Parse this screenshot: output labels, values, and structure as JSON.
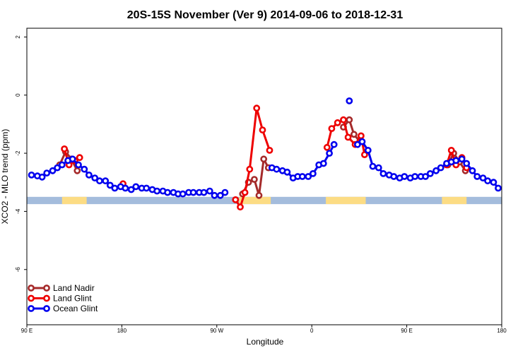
{
  "chart_data": {
    "type": "line",
    "title": "20S-15S November (Ver 9)   2014-09-06 to 2018-12-31",
    "xlabel": "Longitude",
    "ylabel": "XCO2 - MLO trend (ppm)",
    "xlim": [
      0,
      405
    ],
    "ylim": [
      -7.9,
      2.3
    ],
    "x_ticks": [
      {
        "value": 0,
        "label": "90 E"
      },
      {
        "value": 81,
        "label": "180"
      },
      {
        "value": 162,
        "label": "90 W"
      },
      {
        "value": 243,
        "label": "0"
      },
      {
        "value": 324,
        "label": "90 E"
      },
      {
        "value": 405,
        "label": "180"
      }
    ],
    "y_ticks": [
      {
        "value": 2,
        "label": "2"
      },
      {
        "value": 0,
        "label": "0"
      },
      {
        "value": -2,
        "label": "-2"
      },
      {
        "value": -4,
        "label": "-4"
      },
      {
        "value": -6,
        "label": "-6"
      }
    ],
    "legend": {
      "position": "bottom-left",
      "entries": [
        "Land Nadir",
        "Land Glint",
        "Ocean Glint"
      ]
    },
    "surface_band": {
      "y_top": -3.5,
      "y_bottom": -3.75,
      "ocean_color": "#a4bcdc",
      "land_color": "#fcdc84",
      "land_ranges": [
        [
          30,
          51
        ],
        [
          181,
          208
        ],
        [
          255,
          289
        ],
        [
          354,
          375
        ]
      ]
    },
    "series": [
      {
        "name": "Land Nadir",
        "color": "#a52a2a",
        "segments": [
          [
            [
              28,
              -2.4
            ],
            [
              33,
              -1.95
            ],
            [
              38,
              -2.2
            ],
            [
              43,
              -2.6
            ]
          ],
          [
            [
              184,
              -3.4
            ],
            [
              189,
              -3.0
            ],
            [
              194,
              -2.9
            ],
            [
              198,
              -3.45
            ],
            [
              202,
              -2.2
            ],
            [
              206,
              -2.5
            ]
          ],
          [
            [
              270,
              -1.1
            ],
            [
              275,
              -0.85
            ],
            [
              279,
              -1.35
            ],
            [
              284,
              -1.6
            ]
          ],
          [
            [
              359,
              -2.4
            ],
            [
              364,
              -2.0
            ],
            [
              369,
              -2.3
            ],
            [
              374,
              -2.6
            ]
          ]
        ]
      },
      {
        "name": "Land Glint",
        "color": "#ee0000",
        "segments": [
          [
            [
              32,
              -1.85
            ],
            [
              36,
              -2.4
            ],
            [
              41,
              -2.25
            ],
            [
              45,
              -2.15
            ]
          ],
          [
            [
              82,
              -3.05
            ]
          ],
          [
            [
              178,
              -3.6
            ],
            [
              182,
              -3.85
            ],
            [
              186,
              -3.35
            ],
            [
              190,
              -2.55
            ],
            [
              196,
              -0.45
            ],
            [
              201,
              -1.2
            ],
            [
              207,
              -1.9
            ]
          ],
          [
            [
              256,
              -1.8
            ],
            [
              260,
              -1.15
            ],
            [
              265,
              -0.95
            ],
            [
              270,
              -0.85
            ],
            [
              274,
              -1.45
            ],
            [
              280,
              -1.7
            ],
            [
              285,
              -1.4
            ],
            [
              288,
              -2.05
            ]
          ],
          [
            [
              358,
              -2.4
            ],
            [
              362,
              -1.9
            ],
            [
              366,
              -2.4
            ],
            [
              371,
              -2.15
            ],
            [
              375,
              -2.5
            ]
          ]
        ]
      },
      {
        "name": "Ocean Glint",
        "color": "#0000ee",
        "segments": [
          [
            [
              4,
              -2.75
            ],
            [
              9,
              -2.78
            ],
            [
              13,
              -2.82
            ],
            [
              17,
              -2.68
            ],
            [
              22,
              -2.6
            ],
            [
              26,
              -2.5
            ],
            [
              30,
              -2.4
            ],
            [
              35,
              -2.25
            ],
            [
              39,
              -2.2
            ],
            [
              44,
              -2.4
            ],
            [
              49,
              -2.55
            ],
            [
              53,
              -2.75
            ],
            [
              58,
              -2.85
            ],
            [
              62,
              -2.95
            ],
            [
              67,
              -2.95
            ],
            [
              71,
              -3.1
            ],
            [
              75,
              -3.2
            ],
            [
              80,
              -3.15
            ],
            [
              84,
              -3.2
            ],
            [
              89,
              -3.25
            ],
            [
              93,
              -3.15
            ],
            [
              98,
              -3.2
            ],
            [
              102,
              -3.2
            ],
            [
              107,
              -3.25
            ],
            [
              111,
              -3.3
            ],
            [
              116,
              -3.3
            ],
            [
              120,
              -3.35
            ],
            [
              125,
              -3.35
            ],
            [
              129,
              -3.4
            ],
            [
              133,
              -3.4
            ],
            [
              138,
              -3.35
            ],
            [
              142,
              -3.35
            ],
            [
              147,
              -3.35
            ],
            [
              151,
              -3.35
            ],
            [
              156,
              -3.3
            ],
            [
              160,
              -3.45
            ],
            [
              165,
              -3.45
            ],
            [
              169,
              -3.35
            ]
          ],
          [
            [
              209,
              -2.5
            ],
            [
              213,
              -2.55
            ],
            [
              218,
              -2.6
            ],
            [
              222,
              -2.65
            ],
            [
              227,
              -2.85
            ],
            [
              231,
              -2.8
            ],
            [
              235,
              -2.8
            ],
            [
              240,
              -2.8
            ],
            [
              244,
              -2.7
            ],
            [
              249,
              -2.4
            ],
            [
              253,
              -2.35
            ],
            [
              258,
              -2.0
            ],
            [
              262,
              -1.7
            ]
          ],
          [
            [
              275,
              -0.2
            ]
          ],
          [
            [
              282,
              -1.7
            ],
            [
              286,
              -1.6
            ],
            [
              291,
              -1.9
            ],
            [
              295,
              -2.45
            ],
            [
              300,
              -2.5
            ],
            [
              304,
              -2.7
            ],
            [
              309,
              -2.75
            ],
            [
              313,
              -2.8
            ],
            [
              318,
              -2.85
            ],
            [
              322,
              -2.8
            ],
            [
              327,
              -2.85
            ],
            [
              331,
              -2.8
            ],
            [
              336,
              -2.8
            ],
            [
              340,
              -2.8
            ],
            [
              344,
              -2.7
            ],
            [
              349,
              -2.6
            ],
            [
              353,
              -2.5
            ],
            [
              358,
              -2.35
            ],
            [
              362,
              -2.3
            ],
            [
              366,
              -2.25
            ],
            [
              371,
              -2.2
            ],
            [
              375,
              -2.35
            ],
            [
              380,
              -2.6
            ],
            [
              384,
              -2.8
            ],
            [
              389,
              -2.85
            ],
            [
              393,
              -2.95
            ],
            [
              398,
              -3.0
            ],
            [
              402,
              -3.2
            ]
          ]
        ]
      }
    ]
  }
}
